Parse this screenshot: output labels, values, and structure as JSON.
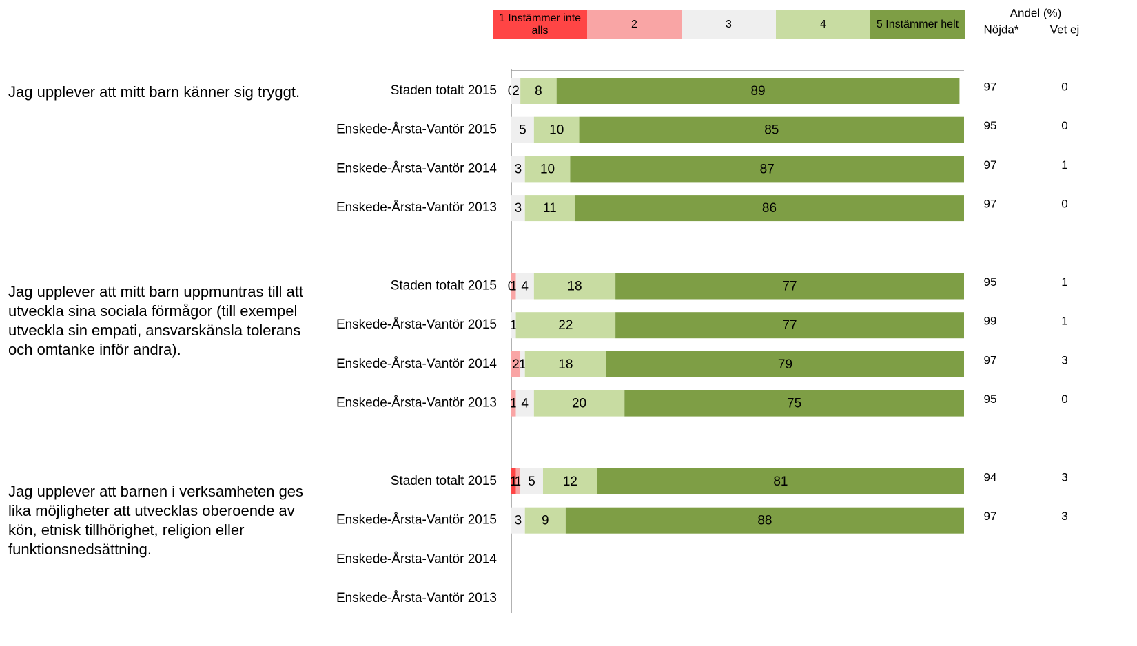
{
  "chart_data": {
    "type": "stacked-bar-horizontal",
    "xlim": [
      0,
      100
    ],
    "group_labels": [
      "Jag upplever att mitt barn känner sig tryggt.",
      "Jag upplever att mitt barn uppmuntras till att utveckla sina sociala förmågor (till exempel utveckla sin empati, ansvarskänsla tolerans och omtanke inför andra).",
      "Jag upplever att barnen i verksamheten ges lika möjligheter att utvecklas oberoende av kön, etnisk tillhörighet, religion eller funktionsnedsättning."
    ],
    "categories": [
      "Staden totalt 2015",
      "Enskede-Årsta-Vantör 2015",
      "Enskede-Årsta-Vantör 2014",
      "Enskede-Årsta-Vantör 2013",
      "Staden totalt 2015",
      "Enskede-Årsta-Vantör 2015",
      "Enskede-Årsta-Vantör 2014",
      "Enskede-Årsta-Vantör 2013",
      "Staden totalt 2015",
      "Enskede-Årsta-Vantör 2015",
      "Enskede-Årsta-Vantör 2014",
      "Enskede-Årsta-Vantör 2013"
    ],
    "series": [
      {
        "name": "1 Instämmer inte alls",
        "color": "#ff4545",
        "values": [
          0,
          null,
          null,
          null,
          0,
          null,
          null,
          null,
          1,
          null,
          null,
          null
        ]
      },
      {
        "name": "2",
        "color": "#f9a5a5",
        "values": [
          null,
          null,
          null,
          null,
          1,
          null,
          2,
          1,
          1,
          null,
          null,
          null
        ]
      },
      {
        "name": "3",
        "color": "#efefef",
        "values": [
          2,
          5,
          3,
          3,
          4,
          1,
          1,
          4,
          5,
          3,
          null,
          null
        ]
      },
      {
        "name": "4",
        "color": "#c8dca2",
        "values": [
          8,
          10,
          10,
          11,
          18,
          22,
          18,
          20,
          12,
          9,
          null,
          null
        ]
      },
      {
        "name": "5 Instämmer helt",
        "color": "#7e9e45",
        "values": [
          89,
          85,
          87,
          86,
          77,
          77,
          79,
          75,
          81,
          88,
          null,
          null
        ]
      }
    ],
    "side_header": "Andel (%)",
    "side_columns": [
      {
        "name": "Nöjda*",
        "values": [
          97,
          95,
          97,
          97,
          95,
          99,
          97,
          95,
          94,
          97,
          null,
          null
        ]
      },
      {
        "name": "Vet ej",
        "values": [
          0,
          0,
          1,
          0,
          1,
          1,
          3,
          0,
          3,
          3,
          null,
          null
        ]
      }
    ]
  }
}
